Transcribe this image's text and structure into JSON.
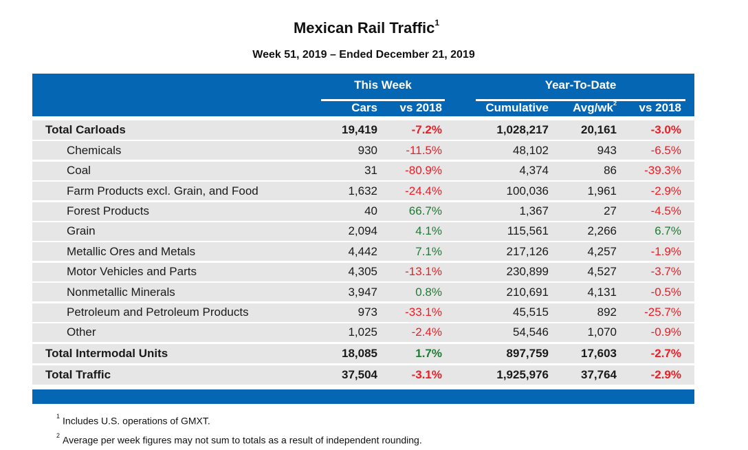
{
  "title": "Mexican Rail Traffic",
  "title_footnote_ref": "1",
  "subtitle": "Week 51, 2019 – Ended December 21, 2019",
  "colors": {
    "header_blue": "#0566b4",
    "row_gray": "#e6e6e6",
    "negative": "#ee1c25",
    "positive": "#1e7b34"
  },
  "header": {
    "this_week": {
      "label": "This Week",
      "columns": [
        "Cars",
        "vs 2018"
      ]
    },
    "ytd": {
      "label": "Year-To-Date",
      "columns": [
        "Cumulative",
        "Avg/wk",
        "vs 2018"
      ],
      "avg_footnote_ref": "2"
    }
  },
  "rows": [
    {
      "label": "Total Carloads",
      "type": "total",
      "cars": "19,419",
      "wk_pct": "-7.2%",
      "wk_dir": "neg",
      "cumulative": "1,028,217",
      "avg": "20,161",
      "ytd_pct": "-3.0%",
      "ytd_dir": "neg"
    },
    {
      "label": "Chemicals",
      "type": "sub",
      "cars": "930",
      "wk_pct": "-11.5%",
      "wk_dir": "neg",
      "cumulative": "48,102",
      "avg": "943",
      "ytd_pct": "-6.5%",
      "ytd_dir": "neg"
    },
    {
      "label": "Coal",
      "type": "sub",
      "cars": "31",
      "wk_pct": "-80.9%",
      "wk_dir": "neg",
      "cumulative": "4,374",
      "avg": "86",
      "ytd_pct": "-39.3%",
      "ytd_dir": "neg"
    },
    {
      "label": "Farm Products excl. Grain, and Food",
      "type": "sub",
      "cars": "1,632",
      "wk_pct": "-24.4%",
      "wk_dir": "neg",
      "cumulative": "100,036",
      "avg": "1,961",
      "ytd_pct": "-2.9%",
      "ytd_dir": "neg"
    },
    {
      "label": "Forest Products",
      "type": "sub",
      "cars": "40",
      "wk_pct": "66.7%",
      "wk_dir": "pos",
      "cumulative": "1,367",
      "avg": "27",
      "ytd_pct": "-4.5%",
      "ytd_dir": "neg"
    },
    {
      "label": "Grain",
      "type": "sub",
      "cars": "2,094",
      "wk_pct": "4.1%",
      "wk_dir": "pos",
      "cumulative": "115,561",
      "avg": "2,266",
      "ytd_pct": "6.7%",
      "ytd_dir": "pos"
    },
    {
      "label": "Metallic Ores and Metals",
      "type": "sub",
      "cars": "4,442",
      "wk_pct": "7.1%",
      "wk_dir": "pos",
      "cumulative": "217,126",
      "avg": "4,257",
      "ytd_pct": "-1.9%",
      "ytd_dir": "neg"
    },
    {
      "label": "Motor Vehicles and Parts",
      "type": "sub",
      "cars": "4,305",
      "wk_pct": "-13.1%",
      "wk_dir": "neg",
      "cumulative": "230,899",
      "avg": "4,527",
      "ytd_pct": "-3.7%",
      "ytd_dir": "neg"
    },
    {
      "label": "Nonmetallic Minerals",
      "type": "sub",
      "cars": "3,947",
      "wk_pct": "0.8%",
      "wk_dir": "pos",
      "cumulative": "210,691",
      "avg": "4,131",
      "ytd_pct": "-0.5%",
      "ytd_dir": "neg"
    },
    {
      "label": "Petroleum and Petroleum Products",
      "type": "sub",
      "cars": "973",
      "wk_pct": "-33.1%",
      "wk_dir": "neg",
      "cumulative": "45,515",
      "avg": "892",
      "ytd_pct": "-25.7%",
      "ytd_dir": "neg"
    },
    {
      "label": "Other",
      "type": "sub",
      "cars": "1,025",
      "wk_pct": "-2.4%",
      "wk_dir": "neg",
      "cumulative": "54,546",
      "avg": "1,070",
      "ytd_pct": "-0.9%",
      "ytd_dir": "neg"
    },
    {
      "label": "Total Intermodal Units",
      "type": "total",
      "cars": "18,085",
      "wk_pct": "1.7%",
      "wk_dir": "pos",
      "cumulative": "897,759",
      "avg": "17,603",
      "ytd_pct": "-2.7%",
      "ytd_dir": "neg"
    },
    {
      "label": "Total Traffic",
      "type": "total",
      "cars": "37,504",
      "wk_pct": "-3.1%",
      "wk_dir": "neg",
      "cumulative": "1,925,976",
      "avg": "37,764",
      "ytd_pct": "-2.9%",
      "ytd_dir": "neg"
    }
  ],
  "footnotes": [
    {
      "ref": "1",
      "text": "Includes U.S. operations of GMXT."
    },
    {
      "ref": "2",
      "text": "Average per week figures may not sum to totals as a result of independent rounding."
    }
  ]
}
